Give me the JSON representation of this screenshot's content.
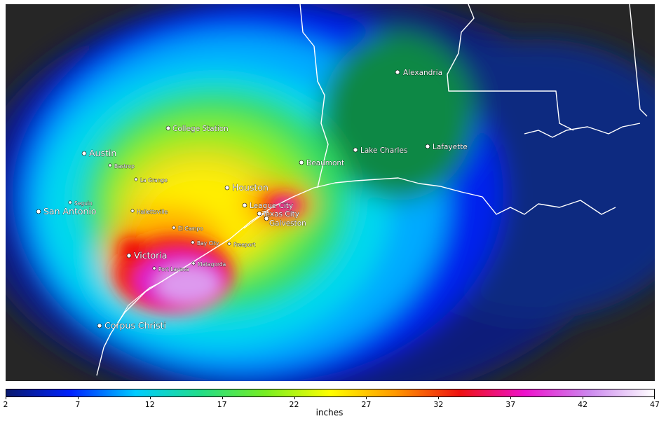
{
  "map": {
    "colors": {
      "land": "#262626",
      "coast": "#ffffff"
    },
    "cities": [
      {
        "name": "Alexandria",
        "size": "mid"
      },
      {
        "name": "College Station",
        "size": "mid"
      },
      {
        "name": "Austin",
        "size": "big"
      },
      {
        "name": "Bastrop",
        "size": "small"
      },
      {
        "name": "Lake Charles",
        "size": "mid"
      },
      {
        "name": "Lafayette",
        "size": "mid"
      },
      {
        "name": "Beaumont",
        "size": "mid"
      },
      {
        "name": "La Grange",
        "size": "small"
      },
      {
        "name": "Houston",
        "size": "big"
      },
      {
        "name": "Seguin",
        "size": "small"
      },
      {
        "name": "League City",
        "size": "mid"
      },
      {
        "name": "San Antonio",
        "size": "big"
      },
      {
        "name": "Hallettsville",
        "size": "small"
      },
      {
        "name": "Texas City",
        "size": "mid"
      },
      {
        "name": "Galveston",
        "size": "mid"
      },
      {
        "name": "El Campo",
        "size": "small"
      },
      {
        "name": "Bay City",
        "size": "small"
      },
      {
        "name": "Freeport",
        "size": "small"
      },
      {
        "name": "Victoria",
        "size": "big"
      },
      {
        "name": "Port Lavaca",
        "size": "small"
      },
      {
        "name": "Matagorda",
        "size": "small"
      },
      {
        "name": "Corpus Christi",
        "size": "big"
      }
    ]
  },
  "colorbar": {
    "min": 2,
    "max": 47,
    "ticks": [
      "2",
      "7",
      "12",
      "17",
      "22",
      "27",
      "32",
      "37",
      "42",
      "47"
    ],
    "unit": "inches",
    "stops": [
      "#0a1a6e",
      "#0022ff",
      "#00ccff",
      "#22dd88",
      "#77ee22",
      "#ffff00",
      "#ff9900",
      "#ee1111",
      "#ee11cc",
      "#cc88ee",
      "#ffffff"
    ]
  }
}
